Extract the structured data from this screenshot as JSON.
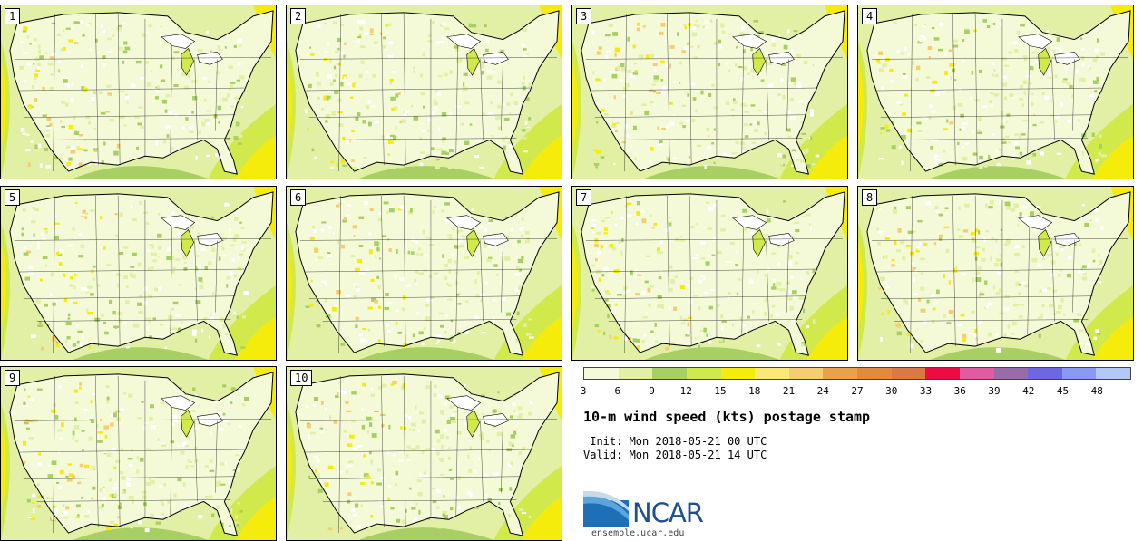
{
  "panels": [
    {
      "label": "1"
    },
    {
      "label": "2"
    },
    {
      "label": "3"
    },
    {
      "label": "4"
    },
    {
      "label": "5"
    },
    {
      "label": "6"
    },
    {
      "label": "7"
    },
    {
      "label": "8"
    },
    {
      "label": "9"
    },
    {
      "label": "10"
    }
  ],
  "legend": {
    "colors": [
      "#f4f9d7",
      "#e1f0a4",
      "#a7cf63",
      "#d1e94b",
      "#f5ec0c",
      "#fbe877",
      "#f6cd71",
      "#e9a24a",
      "#e48a3b",
      "#dd7844",
      "#ee0b42",
      "#e25aa0",
      "#9a6bab",
      "#6e67e4",
      "#8a99f4",
      "#b4c8f7"
    ],
    "ticks": [
      "3",
      "6",
      "9",
      "12",
      "15",
      "18",
      "21",
      "24",
      "27",
      "30",
      "33",
      "36",
      "39",
      "42",
      "45",
      "48"
    ]
  },
  "title": "10-m wind speed (kts) postage stamp",
  "init": " Init: Mon 2018-05-21 00 UTC",
  "valid": "Valid: Mon 2018-05-21 14 UTC",
  "logo": {
    "text": "NCAR",
    "site": "ensemble.ucar.edu",
    "color": "#1d4f91"
  }
}
